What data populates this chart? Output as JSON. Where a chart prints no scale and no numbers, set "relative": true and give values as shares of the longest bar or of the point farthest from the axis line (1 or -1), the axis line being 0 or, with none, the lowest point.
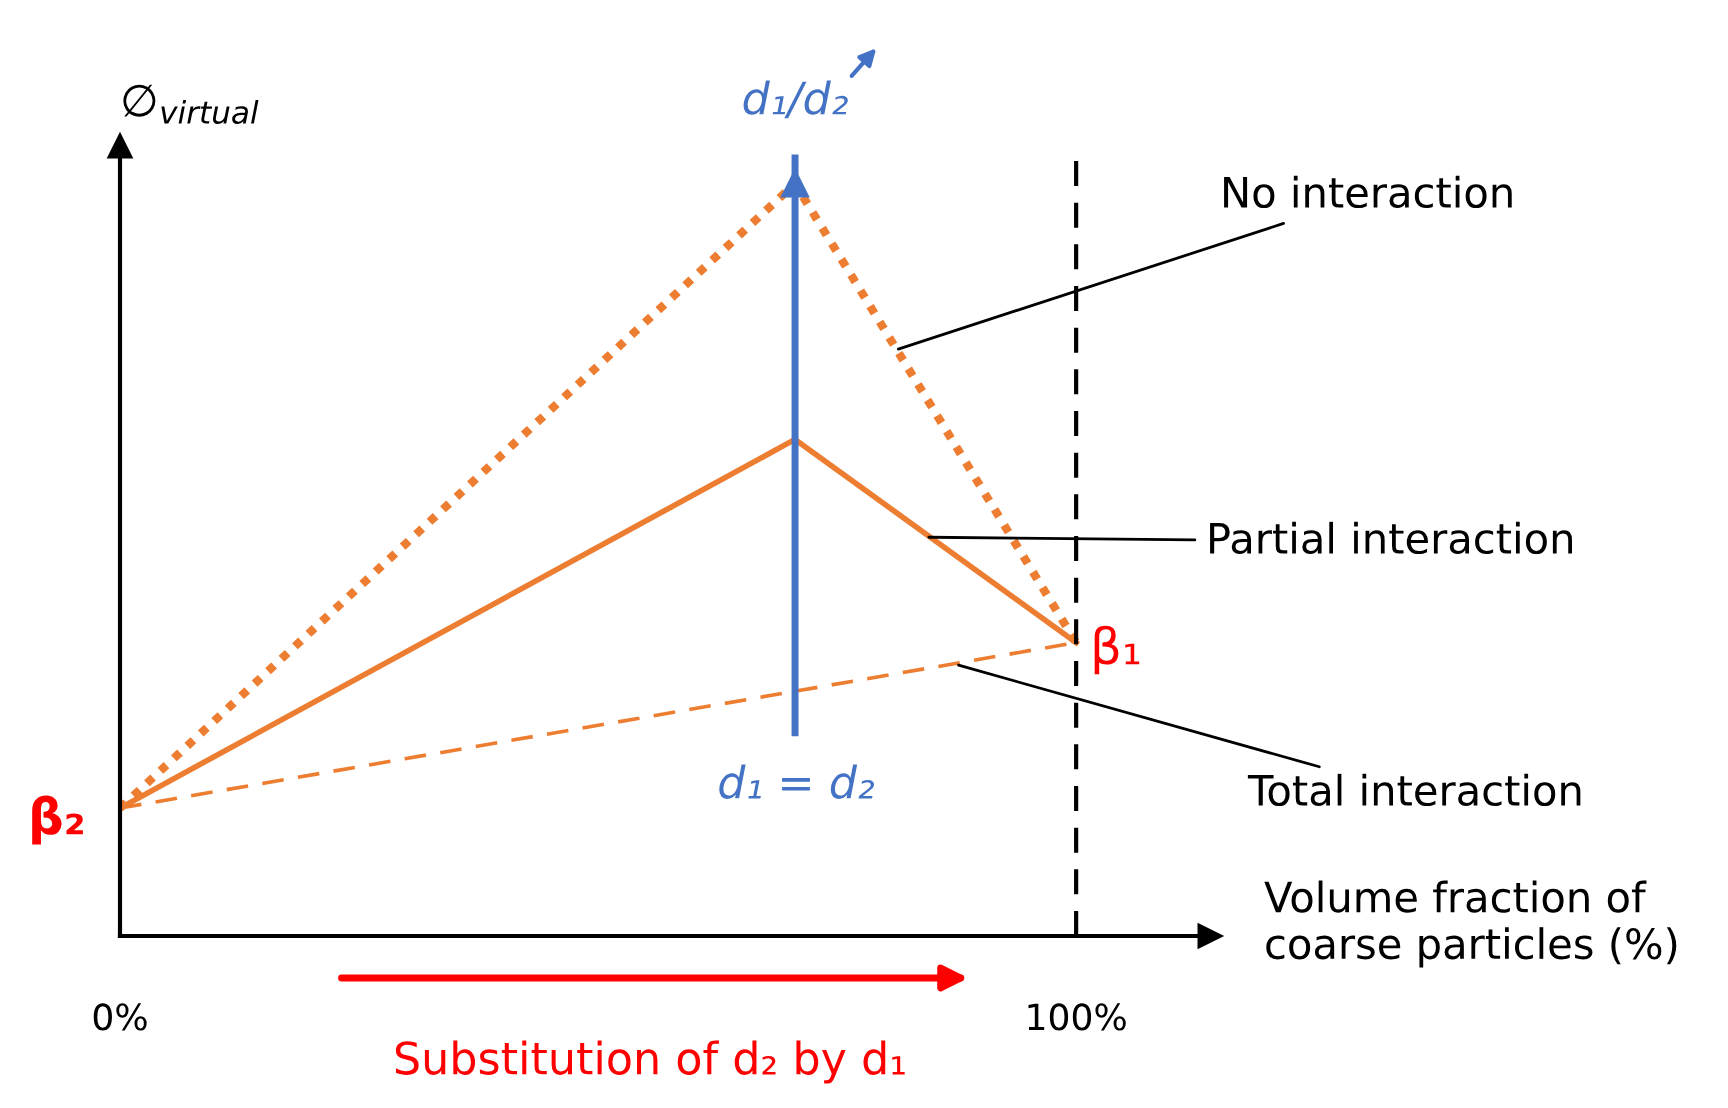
{
  "chart_data": {
    "type": "line",
    "relative": true,
    "ylabel": "∅$_{virtual}$",
    "xlabel": "Volume fraction of coarse particles (%)",
    "xlim": [
      0,
      114
    ],
    "xticks": [
      {
        "value": 0,
        "label": "0%"
      },
      {
        "value": 100,
        "label": "100%"
      }
    ],
    "series": [
      {
        "color": "#ed7d31",
        "line_style": "dotted",
        "x": [
          0,
          70.6,
          100
        ],
        "values": [
          0.17,
          1,
          0.39
        ]
      },
      {
        "color": "#ed7d31",
        "line_style": "solid",
        "x": [
          0,
          70.6,
          100
        ],
        "values": [
          0.17,
          0.66,
          0.39
        ]
      },
      {
        "color": "#ed7d31",
        "line_style": "dashed",
        "x": [
          0,
          100
        ],
        "values": [
          0.17,
          0.39
        ]
      }
    ],
    "ref_lines": [
      {
        "axis": "x",
        "value": 70.6,
        "label": "d₁/d₂",
        "color": "#4472c4"
      },
      {
        "axis": "x",
        "value": 100,
        "color": "#000000",
        "line_style": "dashed"
      }
    ],
    "annotations": [
      {
        "text": "No interaction",
        "x": 81.4,
        "y": 0.78
      },
      {
        "text": "Partial interaction",
        "x": 84.6,
        "y": 0.53
      },
      {
        "text": "Total interaction",
        "x": 87.7,
        "y": 0.36
      },
      {
        "text": "β₁",
        "x": 100,
        "y": 0.39
      },
      {
        "text": "β₂",
        "x": 0,
        "y": 0.17
      },
      {
        "text": "d₁ = d₂",
        "x": 70.6,
        "y": 0.27
      },
      "Substitution of d₂ by d₁"
    ],
    "grid": false,
    "marker": "none"
  }
}
